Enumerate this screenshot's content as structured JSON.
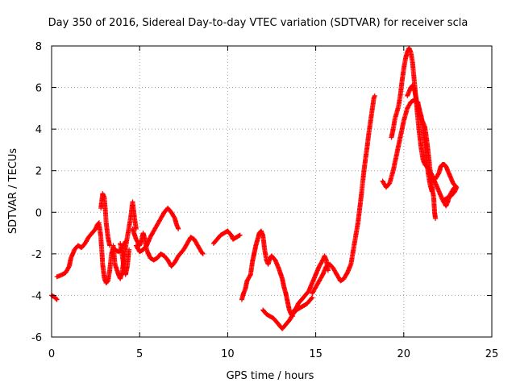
{
  "chart_data": {
    "type": "scatter",
    "title": "Day 350 of 2016, Sidereal Day-to-day VTEC variation (SDTVAR) for receiver scla",
    "xlabel": "GPS time / hours",
    "ylabel": "SDTVAR / TECUs",
    "xlim": [
      0,
      25
    ],
    "ylim": [
      -6,
      8
    ],
    "xticks": [
      0,
      5,
      10,
      15,
      20,
      25
    ],
    "yticks": [
      -6,
      -4,
      -2,
      0,
      2,
      4,
      6,
      8
    ],
    "grid": true,
    "marker": "+",
    "series": [
      {
        "name": "SDTVAR",
        "color": "#ff0000",
        "segments": [
          [
            [
              0.0,
              -4.0
            ],
            [
              0.2,
              -4.1
            ],
            [
              0.3,
              -4.2
            ]
          ],
          [
            [
              0.3,
              -3.1
            ],
            [
              0.6,
              -3.0
            ],
            [
              0.8,
              -2.9
            ],
            [
              1.0,
              -2.6
            ],
            [
              1.1,
              -2.2
            ],
            [
              1.3,
              -1.8
            ],
            [
              1.5,
              -1.6
            ],
            [
              1.7,
              -1.7
            ],
            [
              1.9,
              -1.5
            ],
            [
              2.1,
              -1.2
            ],
            [
              2.3,
              -1.0
            ],
            [
              2.5,
              -0.8
            ],
            [
              2.6,
              -0.6
            ],
            [
              2.7,
              -0.5
            ]
          ],
          [
            [
              2.7,
              -0.6
            ],
            [
              2.8,
              -1.2
            ],
            [
              2.9,
              -2.5
            ],
            [
              3.0,
              -3.2
            ],
            [
              3.1,
              -3.4
            ],
            [
              3.2,
              -3.3
            ],
            [
              3.3,
              -2.8
            ],
            [
              3.4,
              -2.0
            ],
            [
              3.5,
              -1.7
            ],
            [
              3.6,
              -1.8
            ],
            [
              3.8,
              -1.9
            ],
            [
              4.0,
              -1.7
            ],
            [
              4.2,
              -1.4
            ]
          ],
          [
            [
              2.8,
              0.2
            ],
            [
              2.9,
              0.9
            ],
            [
              3.0,
              0.7
            ],
            [
              3.1,
              -0.5
            ],
            [
              3.2,
              -1.2
            ],
            [
              3.3,
              -1.6
            ]
          ],
          [
            [
              3.5,
              -1.6
            ],
            [
              3.6,
              -2.5
            ],
            [
              3.8,
              -3.0
            ],
            [
              3.9,
              -3.2
            ],
            [
              4.0,
              -2.9
            ],
            [
              4.1,
              -2.3
            ],
            [
              4.2,
              -1.7
            ],
            [
              4.3,
              -1.2
            ],
            [
              4.4,
              -0.7
            ],
            [
              4.5,
              -0.2
            ],
            [
              4.6,
              0.5
            ],
            [
              4.7,
              -0.2
            ],
            [
              4.8,
              -0.8
            ]
          ],
          [
            [
              3.9,
              -1.5
            ],
            [
              4.0,
              -2.0
            ],
            [
              4.1,
              -2.6
            ],
            [
              4.2,
              -3.0
            ],
            [
              4.3,
              -2.6
            ],
            [
              4.4,
              -1.8
            ]
          ],
          [
            [
              4.6,
              -0.8
            ],
            [
              4.8,
              -1.3
            ],
            [
              5.0,
              -1.6
            ],
            [
              5.1,
              -1.4
            ],
            [
              5.2,
              -1.0
            ],
            [
              5.3,
              -1.3
            ],
            [
              5.4,
              -1.8
            ],
            [
              5.6,
              -2.2
            ],
            [
              5.8,
              -2.3
            ],
            [
              6.0,
              -2.2
            ],
            [
              6.2,
              -2.0
            ],
            [
              6.4,
              -2.1
            ],
            [
              6.6,
              -2.3
            ],
            [
              6.8,
              -2.6
            ],
            [
              7.0,
              -2.4
            ],
            [
              7.2,
              -2.1
            ],
            [
              7.5,
              -1.8
            ],
            [
              7.7,
              -1.5
            ],
            [
              7.9,
              -1.2
            ],
            [
              8.1,
              -1.3
            ],
            [
              8.3,
              -1.6
            ],
            [
              8.5,
              -1.9
            ],
            [
              8.6,
              -2.0
            ]
          ],
          [
            [
              4.8,
              -1.6
            ],
            [
              5.0,
              -1.9
            ],
            [
              5.2,
              -1.8
            ],
            [
              5.4,
              -1.6
            ],
            [
              5.6,
              -1.2
            ],
            [
              5.8,
              -0.9
            ],
            [
              6.0,
              -0.6
            ],
            [
              6.2,
              -0.3
            ],
            [
              6.4,
              0.0
            ],
            [
              6.6,
              0.2
            ],
            [
              6.8,
              0.0
            ],
            [
              7.0,
              -0.3
            ],
            [
              7.1,
              -0.6
            ],
            [
              7.2,
              -0.8
            ]
          ],
          [
            [
              9.2,
              -1.5
            ],
            [
              9.4,
              -1.3
            ],
            [
              9.6,
              -1.1
            ],
            [
              9.8,
              -1.0
            ],
            [
              10.0,
              -0.9
            ],
            [
              10.2,
              -1.1
            ],
            [
              10.3,
              -1.3
            ],
            [
              10.5,
              -1.2
            ],
            [
              10.7,
              -1.1
            ]
          ],
          [
            [
              10.8,
              -4.2
            ],
            [
              10.9,
              -3.9
            ],
            [
              11.0,
              -3.7
            ],
            [
              11.1,
              -3.3
            ],
            [
              11.3,
              -3.0
            ],
            [
              11.4,
              -2.4
            ],
            [
              11.5,
              -2.0
            ],
            [
              11.6,
              -1.6
            ],
            [
              11.7,
              -1.3
            ],
            [
              11.8,
              -1.0
            ],
            [
              11.9,
              -0.9
            ],
            [
              12.0,
              -1.1
            ],
            [
              12.1,
              -1.8
            ],
            [
              12.2,
              -2.3
            ],
            [
              12.3,
              -2.5
            ],
            [
              12.4,
              -2.2
            ],
            [
              12.5,
              -2.1
            ],
            [
              12.7,
              -2.3
            ],
            [
              12.9,
              -2.7
            ],
            [
              13.1,
              -3.2
            ],
            [
              13.2,
              -3.6
            ],
            [
              13.3,
              -3.9
            ],
            [
              13.4,
              -4.3
            ],
            [
              13.5,
              -4.7
            ],
            [
              13.6,
              -4.9
            ],
            [
              13.7,
              -5.0
            ]
          ],
          [
            [
              12.0,
              -4.7
            ],
            [
              12.2,
              -4.9
            ],
            [
              12.4,
              -5.0
            ],
            [
              12.6,
              -5.1
            ],
            [
              12.8,
              -5.3
            ],
            [
              13.0,
              -5.5
            ],
            [
              13.1,
              -5.6
            ],
            [
              13.3,
              -5.4
            ],
            [
              13.5,
              -5.2
            ],
            [
              13.7,
              -4.9
            ],
            [
              13.9,
              -4.7
            ],
            [
              14.1,
              -4.6
            ],
            [
              14.3,
              -4.5
            ],
            [
              14.5,
              -4.4
            ],
            [
              14.6,
              -4.3
            ],
            [
              14.8,
              -4.1
            ]
          ],
          [
            [
              13.7,
              -4.8
            ],
            [
              13.9,
              -4.6
            ],
            [
              14.0,
              -4.4
            ],
            [
              14.2,
              -4.2
            ],
            [
              14.4,
              -4.0
            ],
            [
              14.6,
              -3.8
            ],
            [
              14.8,
              -3.4
            ],
            [
              15.0,
              -3.0
            ],
            [
              15.2,
              -2.6
            ],
            [
              15.4,
              -2.3
            ],
            [
              15.5,
              -2.1
            ],
            [
              15.6,
              -2.3
            ],
            [
              15.7,
              -2.8
            ]
          ],
          [
            [
              14.8,
              -3.9
            ],
            [
              15.0,
              -3.6
            ],
            [
              15.2,
              -3.3
            ],
            [
              15.4,
              -3.0
            ],
            [
              15.6,
              -2.6
            ],
            [
              15.8,
              -2.5
            ],
            [
              16.0,
              -2.7
            ],
            [
              16.2,
              -3.0
            ],
            [
              16.4,
              -3.3
            ],
            [
              16.6,
              -3.2
            ],
            [
              16.8,
              -2.9
            ],
            [
              17.0,
              -2.5
            ],
            [
              17.1,
              -2.0
            ],
            [
              17.2,
              -1.5
            ],
            [
              17.3,
              -1.0
            ],
            [
              17.4,
              -0.5
            ],
            [
              17.5,
              0.2
            ],
            [
              17.6,
              0.9
            ],
            [
              17.7,
              1.7
            ],
            [
              17.8,
              2.4
            ],
            [
              17.9,
              3.0
            ],
            [
              18.0,
              3.7
            ],
            [
              18.1,
              4.3
            ],
            [
              18.2,
              4.9
            ],
            [
              18.3,
              5.5
            ],
            [
              18.35,
              5.6
            ]
          ],
          [
            [
              18.8,
              1.5
            ],
            [
              19.0,
              1.2
            ],
            [
              19.2,
              1.4
            ],
            [
              19.4,
              2.0
            ],
            [
              19.6,
              2.8
            ],
            [
              19.8,
              3.6
            ],
            [
              20.0,
              4.4
            ],
            [
              20.2,
              5.0
            ],
            [
              20.4,
              5.3
            ],
            [
              20.6,
              5.4
            ],
            [
              20.8,
              5.3
            ],
            [
              20.9,
              4.9
            ],
            [
              21.0,
              4.6
            ],
            [
              21.1,
              4.0
            ],
            [
              21.2,
              3.2
            ],
            [
              21.3,
              2.4
            ],
            [
              21.4,
              1.8
            ],
            [
              21.5,
              1.3
            ],
            [
              21.6,
              1.0
            ]
          ],
          [
            [
              19.3,
              3.6
            ],
            [
              19.4,
              4.0
            ],
            [
              19.5,
              4.5
            ],
            [
              19.7,
              5.1
            ],
            [
              19.8,
              5.6
            ],
            [
              19.9,
              6.3
            ],
            [
              20.0,
              6.9
            ],
            [
              20.1,
              7.4
            ],
            [
              20.2,
              7.7
            ],
            [
              20.3,
              7.9
            ],
            [
              20.4,
              7.7
            ],
            [
              20.5,
              7.2
            ],
            [
              20.6,
              6.3
            ],
            [
              20.7,
              5.4
            ],
            [
              20.8,
              4.5
            ],
            [
              20.9,
              3.7
            ],
            [
              21.0,
              3.0
            ],
            [
              21.1,
              2.5
            ],
            [
              21.2,
              2.3
            ],
            [
              21.4,
              2.1
            ],
            [
              21.6,
              1.8
            ],
            [
              21.8,
              1.4
            ],
            [
              22.0,
              1.0
            ],
            [
              22.2,
              0.6
            ],
            [
              22.4,
              0.3
            ],
            [
              22.5,
              0.5
            ],
            [
              22.6,
              0.8
            ],
            [
              22.8,
              1.1
            ],
            [
              22.9,
              1.2
            ]
          ],
          [
            [
              20.2,
              5.6
            ],
            [
              20.3,
              5.8
            ],
            [
              20.4,
              6.0
            ],
            [
              20.5,
              6.1
            ],
            [
              20.6,
              5.9
            ],
            [
              20.7,
              5.5
            ],
            [
              20.8,
              5.0
            ],
            [
              21.0,
              4.5
            ],
            [
              21.2,
              4.1
            ],
            [
              21.3,
              3.5
            ],
            [
              21.4,
              2.8
            ],
            [
              21.5,
              2.0
            ],
            [
              21.6,
              1.3
            ],
            [
              21.7,
              0.7
            ],
            [
              21.75,
              0.0
            ],
            [
              21.8,
              -0.3
            ]
          ],
          [
            [
              21.8,
              1.6
            ],
            [
              22.0,
              1.9
            ],
            [
              22.1,
              2.2
            ],
            [
              22.2,
              2.3
            ],
            [
              22.3,
              2.3
            ],
            [
              22.4,
              2.2
            ],
            [
              22.5,
              2.0
            ],
            [
              22.6,
              1.8
            ],
            [
              22.7,
              1.6
            ],
            [
              22.8,
              1.4
            ],
            [
              22.9,
              1.3
            ],
            [
              23.0,
              1.2
            ],
            [
              22.9,
              1.0
            ],
            [
              22.7,
              0.8
            ],
            [
              22.5,
              0.7
            ],
            [
              22.3,
              0.6
            ]
          ]
        ]
      }
    ]
  }
}
